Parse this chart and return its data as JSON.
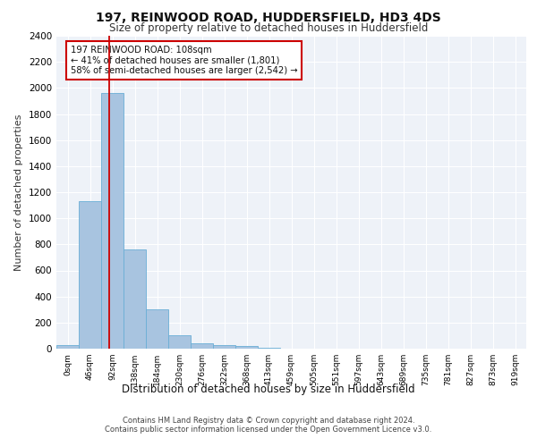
{
  "title_line1": "197, REINWOOD ROAD, HUDDERSFIELD, HD3 4DS",
  "title_line2": "Size of property relative to detached houses in Huddersfield",
  "xlabel": "Distribution of detached houses by size in Huddersfield",
  "ylabel": "Number of detached properties",
  "bar_color": "#a8c4e0",
  "bar_edge_color": "#6aaed6",
  "background_color": "#eef2f8",
  "grid_color": "#ffffff",
  "categories": [
    "0sqm",
    "46sqm",
    "92sqm",
    "138sqm",
    "184sqm",
    "230sqm",
    "276sqm",
    "322sqm",
    "368sqm",
    "413sqm",
    "459sqm",
    "505sqm",
    "551sqm",
    "597sqm",
    "643sqm",
    "689sqm",
    "735sqm",
    "781sqm",
    "827sqm",
    "873sqm",
    "919sqm"
  ],
  "values": [
    25,
    1130,
    1960,
    760,
    300,
    105,
    40,
    30,
    20,
    5,
    2,
    1,
    0,
    0,
    0,
    0,
    0,
    0,
    0,
    0,
    0
  ],
  "ylim": [
    0,
    2400
  ],
  "yticks": [
    0,
    200,
    400,
    600,
    800,
    1000,
    1200,
    1400,
    1600,
    1800,
    2000,
    2200,
    2400
  ],
  "red_line_color": "#cc0000",
  "annotation_text": "197 REINWOOD ROAD: 108sqm\n← 41% of detached houses are smaller (1,801)\n58% of semi-detached houses are larger (2,542) →",
  "annotation_box_color": "#ffffff",
  "annotation_box_edge": "#cc0000",
  "footer_line1": "Contains HM Land Registry data © Crown copyright and database right 2024.",
  "footer_line2": "Contains public sector information licensed under the Open Government Licence v3.0."
}
